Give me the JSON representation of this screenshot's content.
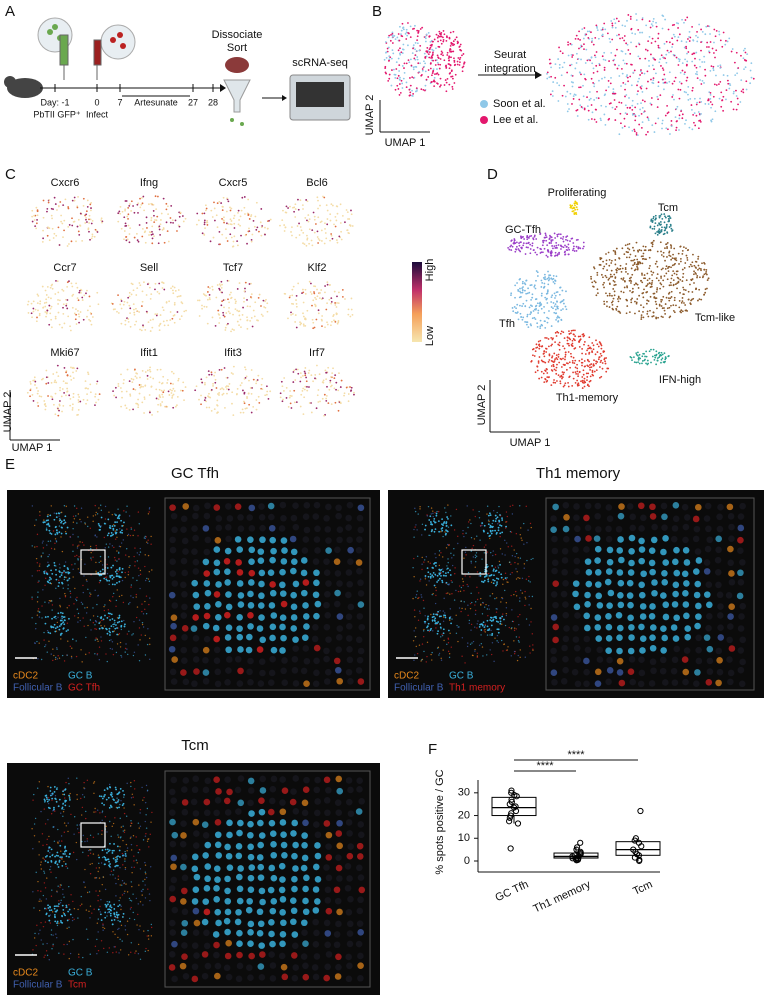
{
  "figure": {
    "panel_letters": [
      "A",
      "B",
      "C",
      "D",
      "E",
      "F"
    ],
    "a": {
      "dissociate": "Dissociate",
      "sort": "Sort",
      "scrnaseq": "scRNA-seq",
      "days": [
        "Day: -1",
        "0",
        "7",
        "27",
        "28"
      ],
      "treatments": [
        "PbTII GFP⁺",
        "Infect"
      ],
      "artesunate": "Artesunate"
    },
    "b": {
      "arrow_label": [
        "Seurat",
        "integration"
      ],
      "x_axis": "UMAP 1",
      "y_axis": "UMAP 2",
      "legend": [
        {
          "name": "Soon et al.",
          "color": "#8fc8e8"
        },
        {
          "name": "Lee et al.",
          "color": "#e3176d"
        }
      ]
    },
    "c": {
      "genes": [
        "Cxcr6",
        "Ifng",
        "Cxcr5",
        "Bcl6",
        "Ccr7",
        "Sell",
        "Tcf7",
        "Klf2",
        "Mki67",
        "Ifit1",
        "Ifit3",
        "Irf7"
      ],
      "scale": [
        "High",
        "Low"
      ],
      "x_axis": "UMAP 1",
      "y_axis": "UMAP 2"
    },
    "d": {
      "clusters": [
        {
          "name": "Proliferating",
          "color": "#f0d000"
        },
        {
          "name": "Tcm",
          "color": "#2a7f8a"
        },
        {
          "name": "GC-Tfh",
          "color": "#9b3ec8"
        },
        {
          "name": "Tcm-like",
          "color": "#8b5a2b"
        },
        {
          "name": "Tfh",
          "color": "#7ab8e0"
        },
        {
          "name": "IFN-high",
          "color": "#2aa390"
        },
        {
          "name": "Th1-memory",
          "color": "#e03b2f"
        }
      ],
      "x_axis": "UMAP 1",
      "y_axis": "UMAP 2"
    },
    "e": {
      "legend_colors": [
        "#e8891c",
        "#3ab0dc",
        "#4060b0",
        "#d42020"
      ],
      "panels": [
        {
          "title": "GC Tfh",
          "legend": [
            "cDC2",
            "GC B",
            "Follicular B",
            "GC Tfh"
          ]
        },
        {
          "title": "Th1 memory",
          "legend": [
            "cDC2",
            "GC B",
            "Follicular B",
            "Th1 memory"
          ]
        },
        {
          "title": "Tcm",
          "legend": [
            "cDC2",
            "GC B",
            "Follicular B",
            "Tcm"
          ]
        }
      ]
    }
  },
  "chart_data": {
    "type": "box",
    "ylabel": "% spots positive / GC",
    "categories": [
      "GC Tfh",
      "Th1 memory",
      "Tcm"
    ],
    "ylim": [
      -1.5,
      33
    ],
    "yticks": [
      0,
      10,
      20,
      30
    ],
    "color": "#000000",
    "boxes": [
      {
        "low": 16.5,
        "q1": 20,
        "median": 23.5,
        "q3": 28,
        "high": 31,
        "points": [
          31,
          30,
          29,
          28.5,
          27,
          26,
          25,
          24,
          23.5,
          22,
          21,
          20,
          19,
          17.5,
          16.5,
          5.5
        ]
      },
      {
        "low": 0.3,
        "q1": 1.3,
        "median": 2,
        "q3": 3.5,
        "high": 6,
        "points": [
          8,
          6,
          5,
          4,
          3.5,
          3,
          2.5,
          2,
          2,
          1.5,
          1.2,
          1,
          0.8,
          0.5,
          0.3
        ]
      },
      {
        "low": 0,
        "q1": 2.5,
        "median": 5,
        "q3": 8.5,
        "high": 10,
        "points": [
          22,
          10,
          9,
          8,
          6.5,
          5,
          4,
          3,
          2.5,
          1.5,
          0.5,
          0
        ]
      }
    ],
    "significance": [
      "****",
      "****"
    ]
  }
}
